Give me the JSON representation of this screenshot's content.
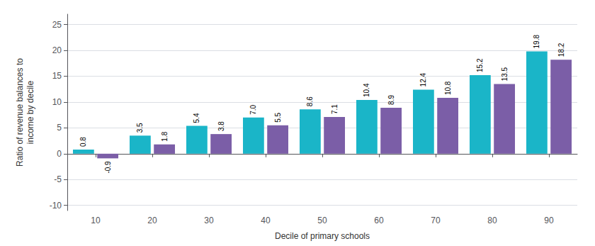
{
  "chart_data": {
    "type": "bar",
    "categories": [
      10,
      20,
      30,
      40,
      50,
      60,
      70,
      80,
      90
    ],
    "xlabel": "Decile of primary schools",
    "ylabel": "Ratio of revenue balances to\nincome by decile",
    "series": [
      {
        "color": "#1ab5c8",
        "values": [
          0.8,
          3.5,
          5.4,
          7.0,
          8.6,
          10.4,
          12.4,
          15.2,
          19.8
        ],
        "value_labels": [
          "0.8",
          "3.5",
          "5.4",
          "7.0",
          "8.6",
          "10.4",
          "12.4",
          "15.2",
          "19.8"
        ]
      },
      {
        "color": "#7b5ea7",
        "values": [
          -0.9,
          1.8,
          3.8,
          5.5,
          7.1,
          8.9,
          10.8,
          13.5,
          18.2
        ],
        "value_labels": [
          "-0.9",
          "1.8",
          "3.8",
          "5.5",
          "7.1",
          "8.9",
          "10.8",
          "13.5",
          "18.2"
        ]
      }
    ],
    "ylim": [
      -11,
      27
    ],
    "yticks": [
      -10,
      -5,
      0,
      5,
      10,
      15,
      20,
      25
    ],
    "grid": true,
    "data_labels": true
  }
}
